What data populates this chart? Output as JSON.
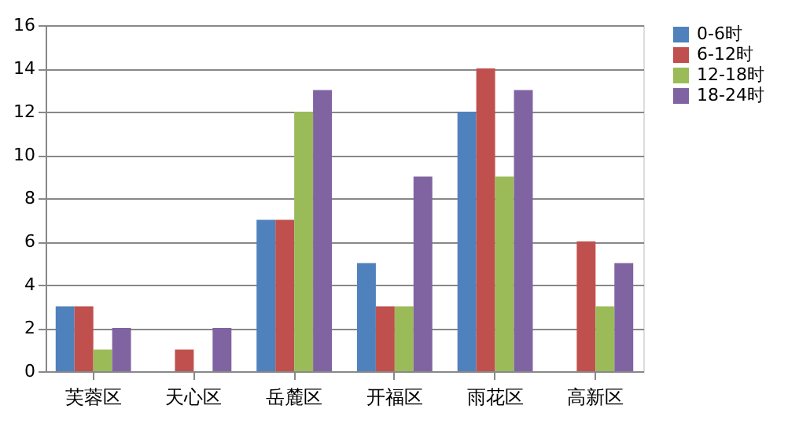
{
  "chart_data": {
    "type": "bar",
    "categories": [
      "芙蓉区",
      "天心区",
      "岳麓区",
      "开福区",
      "雨花区",
      "高新区"
    ],
    "series": [
      {
        "name": "0-6时",
        "color": "#4f81bd",
        "values": [
          3,
          null,
          7,
          5,
          12,
          null
        ]
      },
      {
        "name": "6-12时",
        "color": "#c0504d",
        "values": [
          3,
          1,
          7,
          3,
          14,
          6
        ]
      },
      {
        "name": "12-18时",
        "color": "#9bbb59",
        "values": [
          1,
          null,
          12,
          3,
          9,
          3
        ]
      },
      {
        "name": "18-24时",
        "color": "#8064a2",
        "values": [
          2,
          2,
          13,
          9,
          13,
          5
        ]
      }
    ],
    "ylim": [
      0,
      16
    ],
    "yticks": [
      0,
      2,
      4,
      6,
      8,
      10,
      12,
      14,
      16
    ],
    "grid": "y",
    "legend": "right"
  }
}
